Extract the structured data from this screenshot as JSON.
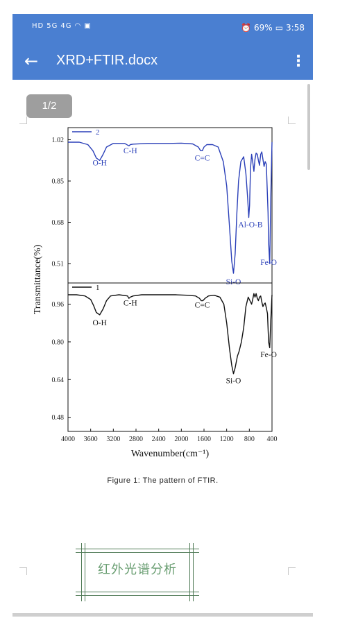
{
  "status_bar": {
    "left": [
      "HD",
      "5G",
      "4G",
      "wifi",
      "notification"
    ],
    "alarm_icon": "alarm-icon",
    "battery_percent": "69%",
    "time": "3:58"
  },
  "app_bar": {
    "back_icon": "arrow-left-icon",
    "title": "XRD+FTIR.docx",
    "more_icon": "more-vertical-icon"
  },
  "document": {
    "page_indicator": "1/2",
    "caption": "Figure 1: The pattern of FTIR.",
    "stamp_text": "红外光谱分析"
  },
  "chart_data": {
    "type": "line",
    "ylabel": "Transmittance(%)",
    "xlabel": "Wavenumber(cm⁻¹)",
    "x_ticks": [
      "4000",
      "3600",
      "3200",
      "2800",
      "2400",
      "2000",
      "1600",
      "1200",
      "800",
      "400"
    ],
    "xlim": [
      4000,
      400
    ],
    "panels": [
      {
        "legend": "2",
        "color": "#2a3fb8",
        "y_ticks": [
          "1.02",
          "0.85",
          "0.68",
          "0.51"
        ],
        "y_tick_values": [
          1.02,
          0.85,
          0.68,
          0.51
        ],
        "ylim": [
          0.43,
          1.07
        ],
        "annotations": [
          {
            "text": "O-H",
            "x": 3440,
            "y": 0.915
          },
          {
            "text": "C-H",
            "x": 2900,
            "y": 0.965
          },
          {
            "text": "C=C",
            "x": 1630,
            "y": 0.935
          },
          {
            "text": "Si-O",
            "x": 1080,
            "y": 0.425
          },
          {
            "text": "Al-O-B",
            "x": 780,
            "y": 0.66
          },
          {
            "text": "Fe-O",
            "x": 460,
            "y": 0.505
          }
        ],
        "series": [
          {
            "x": [
              4000,
              3800,
              3650,
              3560,
              3500,
              3440,
              3380,
              3320,
              3200,
              3000,
              2925,
              2900,
              2850,
              2600,
              2200,
              2000,
              1800,
              1700,
              1660,
              1630,
              1600,
              1550,
              1450,
              1350,
              1260,
              1200,
              1150,
              1110,
              1080,
              1050,
              1020,
              990,
              950,
              900,
              860,
              830,
              810,
              795,
              780,
              760,
              740,
              720,
              700,
              680,
              660,
              640,
              620,
              600,
              580,
              560,
              540,
              520,
              500,
              470,
              460,
              440,
              420,
              400
            ],
            "y": [
              1.01,
              1.01,
              1.0,
              0.975,
              0.945,
              0.935,
              0.96,
              0.99,
              1.005,
              1.005,
              0.995,
              1.0,
              1.002,
              1.005,
              1.005,
              1.006,
              1.003,
              0.99,
              0.975,
              0.975,
              0.99,
              1.0,
              1.0,
              0.99,
              0.93,
              0.83,
              0.66,
              0.52,
              0.47,
              0.55,
              0.72,
              0.85,
              0.93,
              0.95,
              0.88,
              0.78,
              0.7,
              0.75,
              0.9,
              0.96,
              0.93,
              0.89,
              0.94,
              0.965,
              0.96,
              0.935,
              0.915,
              0.96,
              0.97,
              0.94,
              0.91,
              0.93,
              0.92,
              0.72,
              0.6,
              0.51,
              0.8,
              1.01
            ]
          }
        ]
      },
      {
        "legend": "1",
        "color": "#111111",
        "y_ticks": [
          "0.96",
          "0.80",
          "0.64",
          "0.48"
        ],
        "y_tick_values": [
          0.96,
          0.8,
          0.64,
          0.48
        ],
        "ylim": [
          0.42,
          1.05
        ],
        "annotations": [
          {
            "text": "O-H",
            "x": 3440,
            "y": 0.87
          },
          {
            "text": "C-H",
            "x": 2900,
            "y": 0.955
          },
          {
            "text": "C=C",
            "x": 1630,
            "y": 0.945
          },
          {
            "text": "Si-O",
            "x": 1080,
            "y": 0.625
          },
          {
            "text": "Fe-O",
            "x": 460,
            "y": 0.735
          }
        ],
        "series": [
          {
            "x": [
              4000,
              3850,
              3700,
              3600,
              3550,
              3500,
              3440,
              3380,
              3320,
              3250,
              3100,
              2950,
              2925,
              2900,
              2850,
              2700,
              2400,
              2100,
              1900,
              1750,
              1680,
              1650,
              1620,
              1580,
              1520,
              1420,
              1320,
              1250,
              1200,
              1150,
              1110,
              1080,
              1050,
              1010,
              980,
              940,
              900,
              860,
              820,
              790,
              760,
              740,
              720,
              700,
              680,
              660,
              640,
              620,
              600,
              580,
              560,
              540,
              520,
              500,
              480,
              460,
              440,
              420,
              400
            ],
            "y": [
              1.0,
              1.0,
              0.995,
              0.98,
              0.955,
              0.925,
              0.915,
              0.94,
              0.975,
              0.995,
              1.0,
              0.995,
              0.985,
              0.99,
              0.995,
              1.0,
              1.0,
              1.0,
              0.998,
              0.995,
              0.985,
              0.975,
              0.975,
              0.985,
              0.995,
              0.998,
              0.99,
              0.96,
              0.88,
              0.77,
              0.7,
              0.665,
              0.69,
              0.74,
              0.76,
              0.8,
              0.86,
              0.95,
              0.99,
              0.975,
              0.96,
              0.98,
              1.005,
              0.99,
              1.005,
              0.985,
              0.975,
              0.99,
              0.995,
              0.97,
              0.95,
              0.96,
              0.965,
              0.945,
              0.92,
              0.8,
              0.775,
              0.9,
              1.0
            ]
          }
        ]
      }
    ]
  }
}
